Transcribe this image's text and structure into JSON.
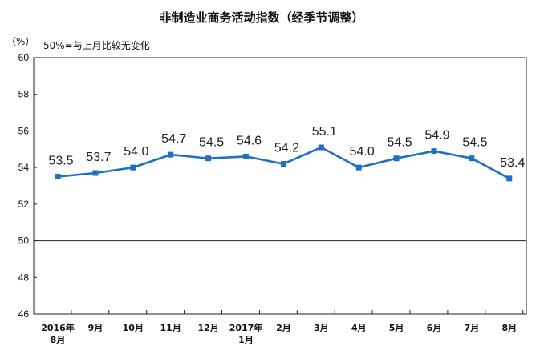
{
  "chart_data": {
    "type": "line",
    "title": "非制造业商务活动指数（经季节调整）",
    "unit_label": "（%）",
    "note": "50%=与上月比较无变化",
    "ylim": [
      46,
      60
    ],
    "yticks": [
      "60",
      "58",
      "56",
      "54",
      "52",
      "50",
      "48",
      "46"
    ],
    "reference_line": 50,
    "grid": false,
    "categories": [
      [
        "2016年",
        "8月"
      ],
      [
        "9月"
      ],
      [
        "10月"
      ],
      [
        "11月"
      ],
      [
        "12月"
      ],
      [
        "2017年",
        "1月"
      ],
      [
        "2月"
      ],
      [
        "3月"
      ],
      [
        "4月"
      ],
      [
        "5月"
      ],
      [
        "6月"
      ],
      [
        "7月"
      ],
      [
        "8月"
      ]
    ],
    "values": [
      53.5,
      53.7,
      54.0,
      54.7,
      54.5,
      54.6,
      54.2,
      55.1,
      54.0,
      54.5,
      54.9,
      54.5,
      53.4
    ],
    "value_labels": [
      "53.5",
      "53.7",
      "54.0",
      "54.7",
      "54.5",
      "54.6",
      "54.2",
      "55.1",
      "54.0",
      "54.5",
      "54.9",
      "54.5",
      "53.4"
    ],
    "colors": {
      "series": "#1f6fc2",
      "axis": "#222222"
    }
  }
}
